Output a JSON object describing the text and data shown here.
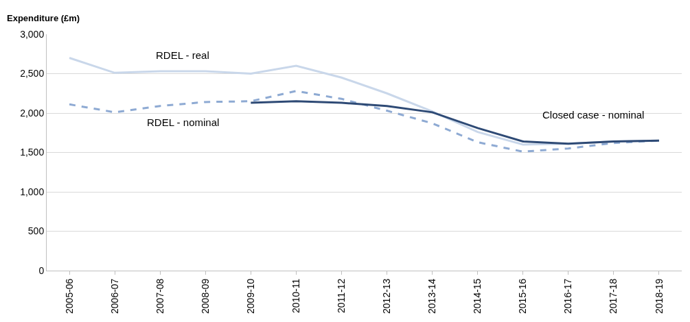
{
  "chart_data": {
    "type": "line",
    "ylabel": "Expenditure (£m)",
    "categories": [
      "2005-06",
      "2006-07",
      "2007-08",
      "2008-09",
      "2009-10",
      "2010-11",
      "2011-12",
      "2012-13",
      "2013-14",
      "2014-15",
      "2015-16",
      "2016-17",
      "2017-18",
      "2018-19"
    ],
    "series": [
      {
        "name": "RDEL - real",
        "color": "#c9d7ea",
        "line_style": "solid",
        "values": [
          2700,
          2510,
          2530,
          2530,
          2500,
          2600,
          2450,
          2250,
          2020,
          1760,
          1600,
          1610,
          1640,
          1650
        ]
      },
      {
        "name": "RDEL - nominal",
        "color": "#8eaad3",
        "line_style": "dashed",
        "values": [
          2110,
          2010,
          2090,
          2140,
          2150,
          2280,
          2180,
          2030,
          1870,
          1630,
          1510,
          1550,
          1620,
          1650
        ]
      },
      {
        "name": "Closed case - nominal",
        "color": "#2e4a75",
        "line_style": "solid",
        "values": [
          null,
          null,
          null,
          null,
          2130,
          2150,
          2130,
          2090,
          2010,
          1810,
          1640,
          1610,
          1640,
          1650
        ]
      }
    ],
    "ylim": [
      0,
      3000
    ],
    "yticks": [
      {
        "value": 0,
        "label": "0"
      },
      {
        "value": 500,
        "label": "500"
      },
      {
        "value": 1000,
        "label": "1,000"
      },
      {
        "value": 1500,
        "label": "1,500"
      },
      {
        "value": 2000,
        "label": "2,000"
      },
      {
        "value": 2500,
        "label": "2,500"
      },
      {
        "value": 3000,
        "label": "3,000"
      }
    ],
    "grid": "y",
    "legend": false,
    "marker": "none"
  }
}
